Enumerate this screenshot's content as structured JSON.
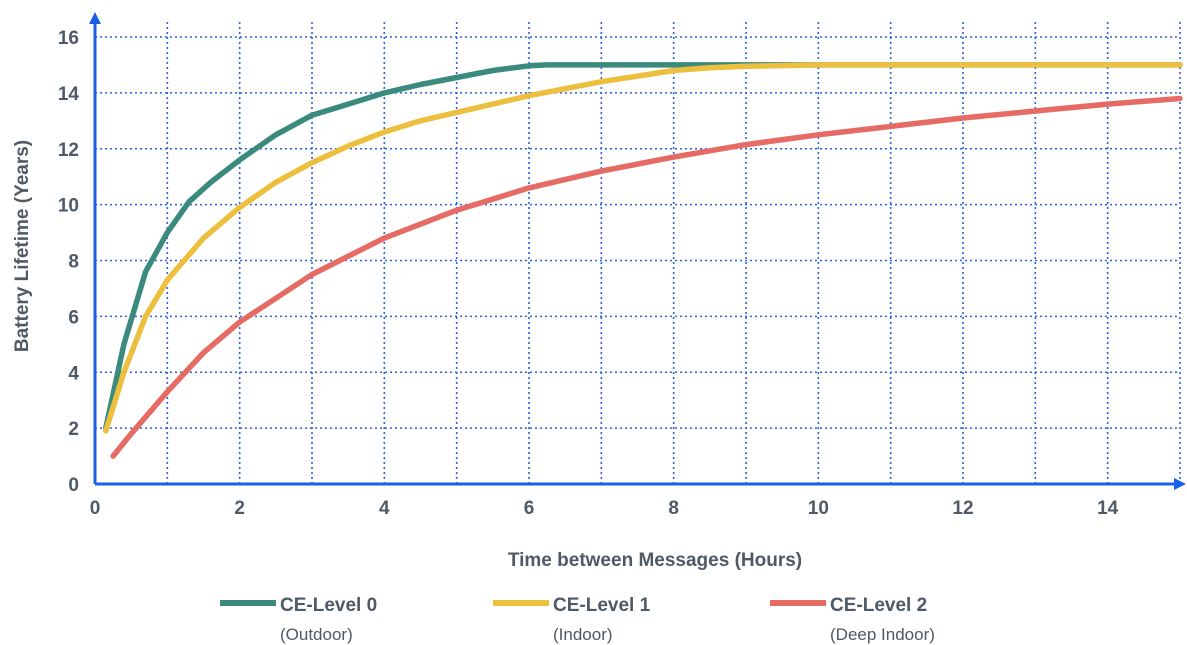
{
  "chart_data": {
    "type": "line",
    "title": "",
    "xlabel": "Time between Messages (Hours)",
    "ylabel": "Battery Lifetime (Years)",
    "xlim": [
      0,
      15
    ],
    "ylim": [
      0,
      16
    ],
    "xticks": [
      0,
      2,
      4,
      6,
      8,
      10,
      12,
      14
    ],
    "yticks": [
      0,
      2,
      4,
      6,
      8,
      10,
      12,
      14,
      16
    ],
    "grid": true,
    "legend_position": "bottom",
    "series": [
      {
        "name": "CE-Level 0",
        "subtitle": "(Outdoor)",
        "color": "#3a8a7e",
        "x": [
          0.15,
          0.4,
          0.7,
          1.0,
          1.3,
          1.6,
          2.0,
          2.5,
          3.0,
          3.5,
          4.0,
          4.5,
          5.0,
          5.5,
          6.0,
          6.25,
          7.0,
          8.0,
          9.0,
          10.0,
          11.0,
          12.0,
          13.0,
          14.0,
          15.0
        ],
        "y": [
          2.0,
          5.0,
          7.6,
          9.0,
          10.1,
          10.8,
          11.6,
          12.5,
          13.2,
          13.6,
          14.0,
          14.3,
          14.55,
          14.8,
          14.97,
          15.0,
          15.0,
          15.0,
          15.0,
          15.0,
          15.0,
          15.0,
          15.0,
          15.0,
          15.0
        ]
      },
      {
        "name": "CE-Level 1",
        "subtitle": "(Indoor)",
        "color": "#ecc03e",
        "x": [
          0.15,
          0.4,
          0.7,
          1.0,
          1.5,
          2.0,
          2.5,
          3.0,
          3.5,
          4.0,
          4.5,
          5.0,
          5.5,
          6.0,
          6.5,
          7.0,
          7.5,
          8.0,
          8.5,
          9.0,
          10.0,
          11.0,
          12.0,
          13.0,
          14.0,
          15.0
        ],
        "y": [
          1.9,
          4.0,
          6.0,
          7.3,
          8.8,
          9.9,
          10.8,
          11.5,
          12.1,
          12.6,
          13.0,
          13.3,
          13.6,
          13.9,
          14.15,
          14.4,
          14.6,
          14.8,
          14.9,
          14.95,
          15.0,
          15.0,
          15.0,
          15.0,
          15.0,
          15.0
        ]
      },
      {
        "name": "CE-Level 2",
        "subtitle": "(Deep Indoor)",
        "color": "#e56b64",
        "x": [
          0.25,
          0.5,
          1.0,
          1.5,
          2.0,
          3.0,
          4.0,
          5.0,
          6.0,
          7.0,
          8.0,
          9.0,
          10.0,
          11.0,
          12.0,
          13.0,
          14.0,
          15.0
        ],
        "y": [
          1.0,
          1.8,
          3.3,
          4.7,
          5.8,
          7.5,
          8.8,
          9.8,
          10.6,
          11.2,
          11.7,
          12.15,
          12.5,
          12.8,
          13.1,
          13.35,
          13.6,
          13.8
        ]
      }
    ]
  }
}
